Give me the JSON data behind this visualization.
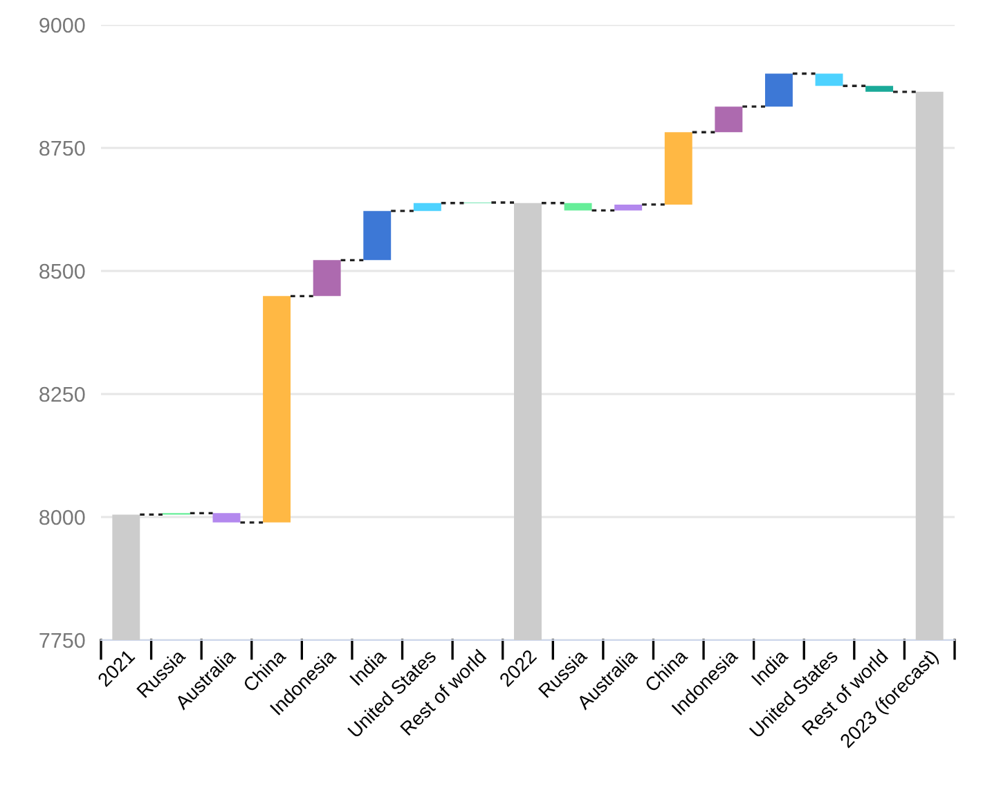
{
  "chart_data": {
    "type": "bar",
    "categories": [
      "2021",
      "Russia",
      "Australia",
      "China",
      "Indonesia",
      "India",
      "United States",
      "Rest of world",
      "2022",
      "Russia",
      "Australia",
      "China",
      "Indonesia",
      "India",
      "United States",
      "Rest of world",
      "2023 (forecast)"
    ],
    "values": [
      8005,
      3,
      -19,
      460,
      73,
      100,
      16,
      1,
      8638,
      -15,
      12,
      147,
      52,
      67,
      -25,
      -12,
      8864
    ],
    "base": [
      null,
      8005,
      8008,
      7989,
      8449,
      8522,
      8622,
      8638,
      null,
      8638,
      8623,
      8635,
      8782,
      8834,
      8901,
      8876,
      null
    ],
    "colors": [
      "#cccccc",
      "#66ee99",
      "#b388ee",
      "#ffb844",
      "#ad6aaf",
      "#3d78d6",
      "#4dd2ff",
      "#44dd99",
      "#cccccc",
      "#66ee99",
      "#b388ee",
      "#ffb844",
      "#ad6aaf",
      "#3d78d6",
      "#4dd2ff",
      "#1aaa99",
      "#cccccc"
    ],
    "ylim": [
      7750,
      9000
    ],
    "yticks": [
      7750,
      8000,
      8250,
      8500,
      8750,
      9000
    ],
    "grid": "y"
  }
}
